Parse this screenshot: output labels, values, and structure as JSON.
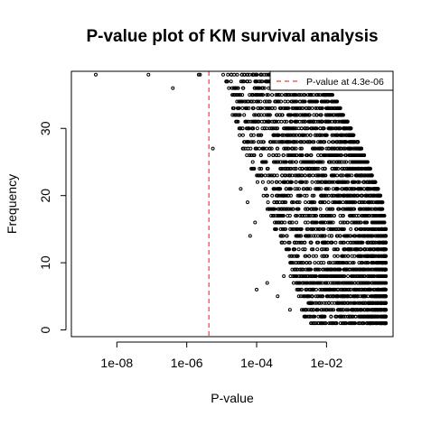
{
  "chart_data": {
    "type": "scatter",
    "title": "P-value plot of KM survival analysis",
    "xlabel": "P-value",
    "ylabel": "Frequency",
    "x_scale": "log10",
    "xlim": [
      5e-10,
      0.8
    ],
    "ylim": [
      -1,
      38.5
    ],
    "x_ticks": [
      1e-08,
      1e-06,
      0.0001,
      0.01
    ],
    "x_tick_labels": [
      "1e-08",
      "1e-06",
      "1e-04",
      "1e-02"
    ],
    "y_ticks": [
      0,
      10,
      20,
      30
    ],
    "y_tick_labels": [
      "0",
      "10",
      "20",
      "30"
    ],
    "grid": false,
    "threshold": {
      "value": 4.3e-06,
      "color": "#e8403f"
    },
    "legend": {
      "position": "top-right",
      "label": "P-value at  4.3e-06"
    },
    "point_color": "#000000",
    "isolated_points": [
      {
        "x": 2.5e-09,
        "y": 38
      },
      {
        "x": 8e-08,
        "y": 38
      },
      {
        "x": 4e-07,
        "y": 36
      },
      {
        "x": 2.2e-06,
        "y": 38
      },
      {
        "x": 2.4e-06,
        "y": 38
      },
      {
        "x": 5.6e-06,
        "y": 27
      },
      {
        "x": 1.1e-05,
        "y": 38
      },
      {
        "x": 1.6e-05,
        "y": 36
      },
      {
        "x": 2.2e-05,
        "y": 33
      },
      {
        "x": 2.8e-05,
        "y": 35
      },
      {
        "x": 3.5e-05,
        "y": 21
      },
      {
        "x": 5.5e-05,
        "y": 19
      },
      {
        "x": 6.5e-05,
        "y": 14
      },
      {
        "x": 0.0001,
        "y": 6
      },
      {
        "x": 9e-05,
        "y": 16
      },
      {
        "x": 0.00012,
        "y": 23
      },
      {
        "x": 0.0002,
        "y": 7
      },
      {
        "x": 0.0003,
        "y": 18
      },
      {
        "x": 0.0004,
        "y": 5
      },
      {
        "x": 0.0006,
        "y": 8
      },
      {
        "x": 0.0009,
        "y": 3
      }
    ],
    "frequency_bands": [
      {
        "y": 1,
        "xmin": 0.0035,
        "xmax": 0.5
      },
      {
        "y": 2,
        "xmin": 0.002,
        "xmax": 0.5
      },
      {
        "y": 3,
        "xmin": 0.0016,
        "xmax": 0.5
      },
      {
        "y": 4,
        "xmin": 0.0025,
        "xmax": 0.5
      },
      {
        "y": 5,
        "xmin": 0.0015,
        "xmax": 0.5
      },
      {
        "y": 6,
        "xmin": 0.0012,
        "xmax": 0.5
      },
      {
        "y": 7,
        "xmin": 0.0011,
        "xmax": 0.5
      },
      {
        "y": 8,
        "xmin": 0.0009,
        "xmax": 0.5
      },
      {
        "y": 9,
        "xmin": 0.0009,
        "xmax": 0.5
      },
      {
        "y": 10,
        "xmin": 0.0008,
        "xmax": 0.5
      },
      {
        "y": 11,
        "xmin": 0.0007,
        "xmax": 0.5
      },
      {
        "y": 12,
        "xmin": 0.0006,
        "xmax": 0.5
      },
      {
        "y": 13,
        "xmin": 0.0005,
        "xmax": 0.5
      },
      {
        "y": 14,
        "xmin": 0.0004,
        "xmax": 0.5
      },
      {
        "y": 15,
        "xmin": 0.0003,
        "xmax": 0.5
      },
      {
        "y": 16,
        "xmin": 0.0003,
        "xmax": 0.45
      },
      {
        "y": 17,
        "xmin": 0.00025,
        "xmax": 0.45
      },
      {
        "y": 18,
        "xmin": 0.0002,
        "xmax": 0.4
      },
      {
        "y": 19,
        "xmin": 0.0002,
        "xmax": 0.4
      },
      {
        "y": 20,
        "xmin": 0.00015,
        "xmax": 0.35
      },
      {
        "y": 21,
        "xmin": 0.00012,
        "xmax": 0.3
      },
      {
        "y": 22,
        "xmin": 0.0001,
        "xmax": 0.25
      },
      {
        "y": 23,
        "xmin": 8e-05,
        "xmax": 0.2
      },
      {
        "y": 24,
        "xmin": 7e-05,
        "xmax": 0.18
      },
      {
        "y": 25,
        "xmin": 6e-05,
        "xmax": 0.15
      },
      {
        "y": 26,
        "xmin": 5e-05,
        "xmax": 0.12
      },
      {
        "y": 27,
        "xmin": 4e-05,
        "xmax": 0.1
      },
      {
        "y": 28,
        "xmin": 4e-05,
        "xmax": 0.08
      },
      {
        "y": 29,
        "xmin": 3e-05,
        "xmax": 0.06
      },
      {
        "y": 30,
        "xmin": 3e-05,
        "xmax": 0.05
      },
      {
        "y": 31,
        "xmin": 2.5e-05,
        "xmax": 0.04
      },
      {
        "y": 32,
        "xmin": 2e-05,
        "xmax": 0.03
      },
      {
        "y": 33,
        "xmin": 2e-05,
        "xmax": 0.025
      },
      {
        "y": 34,
        "xmin": 1.8e-05,
        "xmax": 0.02
      },
      {
        "y": 35,
        "xmin": 1.6e-05,
        "xmax": 0.015
      },
      {
        "y": 36,
        "xmin": 1.5e-05,
        "xmax": 0.01
      },
      {
        "y": 37,
        "xmin": 1.3e-05,
        "xmax": 0.008
      },
      {
        "y": 38,
        "xmin": 1.2e-05,
        "xmax": 0.006
      }
    ]
  }
}
